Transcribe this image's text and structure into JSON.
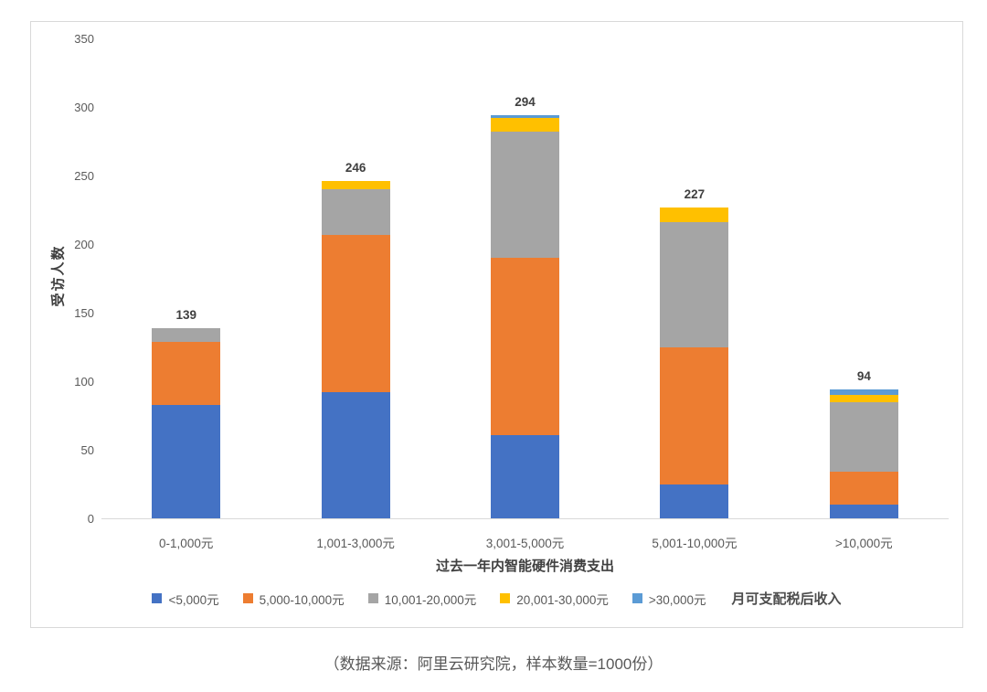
{
  "page": {
    "caption": "（数据来源：阿里云研究院，样本数量=1000份）"
  },
  "chart_data": {
    "type": "bar",
    "stacked": true,
    "title": "",
    "xlabel": "过去一年内智能硬件消费支出",
    "ylabel": "受访人数",
    "legend_note": "月可支配税后收入",
    "legend_position": "bottom",
    "grid": false,
    "ylim": [
      0,
      350
    ],
    "yticks": [
      0,
      50,
      100,
      150,
      200,
      250,
      300,
      350
    ],
    "categories": [
      "0-1,000元",
      "1,001-3,000元",
      "3,001-5,000元",
      "5,001-10,000元",
      ">10,000元"
    ],
    "series": [
      {
        "name": "<5,000元",
        "color": "#4472c4",
        "values": [
          83,
          92,
          61,
          25,
          10
        ]
      },
      {
        "name": "5,000-10,000元",
        "color": "#ed7d31",
        "values": [
          46,
          115,
          129,
          100,
          24
        ]
      },
      {
        "name": "10,001-20,000元",
        "color": "#a5a5a5",
        "values": [
          10,
          33,
          92,
          91,
          51
        ]
      },
      {
        "name": "20,001-30,000元",
        "color": "#ffc000",
        "values": [
          0,
          6,
          10,
          11,
          5
        ]
      },
      {
        "name": ">30,000元",
        "color": "#5b9bd5",
        "values": [
          0,
          0,
          2,
          0,
          4
        ]
      }
    ],
    "totals": [
      139,
      246,
      294,
      227,
      94
    ],
    "axis_line_color": "#d9d9d9",
    "tick_label_color": "#595959",
    "data_label_color": "#3f3f3f"
  }
}
